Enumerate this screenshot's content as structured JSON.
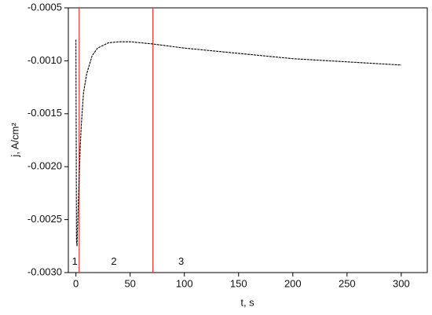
{
  "chart_data": {
    "type": "line",
    "x_label": "t, s",
    "y_label": "j, A/cm²",
    "x": [
      0,
      0.5,
      1,
      2,
      3,
      4,
      5,
      7,
      10,
      15,
      20,
      30,
      40,
      50,
      60,
      70,
      100,
      150,
      200,
      250,
      300
    ],
    "series": [
      {
        "color": "#000000",
        "values": [
          -0.0008,
          -0.0027,
          -0.00275,
          -0.0024,
          -0.0021,
          -0.0018,
          -0.0016,
          -0.0013,
          -0.00112,
          -0.00095,
          -0.00088,
          -0.00083,
          -0.00082,
          -0.00082,
          -0.00083,
          -0.00084,
          -0.00088,
          -0.00093,
          -0.00098,
          -0.00101,
          -0.00104
        ]
      }
    ],
    "vlines": [
      3,
      71
    ],
    "vline_color": "#e03030",
    "annotations": [
      {
        "text": "1",
        "x": -1,
        "y": -0.0029
      },
      {
        "text": "2",
        "x": 35,
        "y": -0.0029
      },
      {
        "text": "3",
        "x": 97,
        "y": -0.0029
      }
    ],
    "xlim": [
      -7,
      324
    ],
    "ylim": [
      -0.003,
      -0.0005
    ],
    "xticks": [
      0,
      50,
      100,
      150,
      200,
      250,
      300
    ],
    "yticks": [
      {
        "value": -0.003,
        "label": "-0.0030"
      },
      -0.0025,
      {
        "value": -0.002,
        "label": "-0.0020"
      },
      -0.0015,
      {
        "value": -0.001,
        "label": "-0.0010"
      },
      -0.0005
    ]
  }
}
